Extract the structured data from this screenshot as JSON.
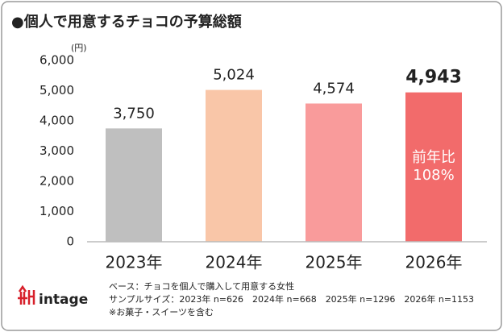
{
  "chart_data": {
    "type": "bar",
    "title": "●個人で用意するチョコの予算総額",
    "y_unit": "(円)",
    "categories": [
      "2023年",
      "2024年",
      "2025年",
      "2026年"
    ],
    "values": [
      3750,
      5024,
      4574,
      4943
    ],
    "value_labels": [
      "3,750",
      "5,024",
      "4,574",
      "4,943"
    ],
    "colors": [
      "#bfbfbf",
      "#f9c6a8",
      "#f99b9b",
      "#f26b6b"
    ],
    "ylim": [
      0,
      6000
    ],
    "yticks": [
      0,
      {
        "value": 1000,
        "label": "1,000"
      },
      {
        "value": 2000,
        "label": "2,000"
      },
      {
        "value": 3000,
        "label": "3,000"
      },
      {
        "value": 4000,
        "label": "4,000"
      },
      {
        "value": 5000,
        "label": "5,000"
      },
      {
        "value": 6000,
        "label": "6,000"
      }
    ],
    "grid": false,
    "annotation": [
      "前年比",
      "108%"
    ],
    "footnotes": [
      "ベース：チョコを個人で購入して用意する女性",
      "サンプルサイズ：2023年 n=626　2024年 n=668　2025年 n=1296　2026年 n=1153",
      "※お菓子・スイーツを含む"
    ],
    "logo": "intage"
  }
}
